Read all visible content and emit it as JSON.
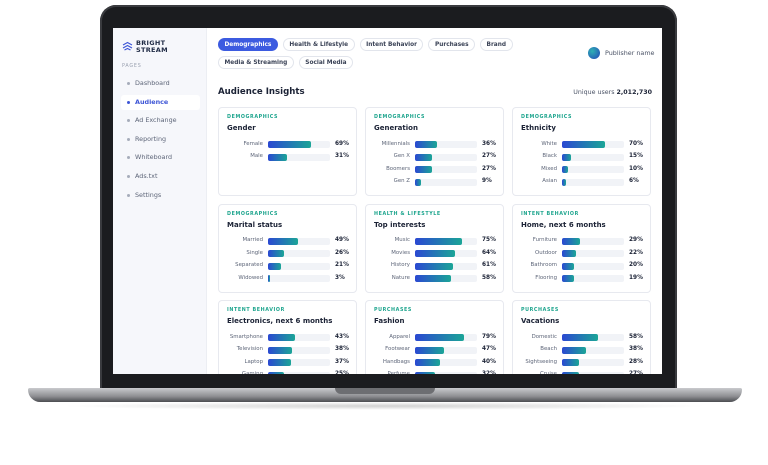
{
  "brand": {
    "line1": "BRIGHT",
    "line2": "STREAM"
  },
  "sidebar": {
    "section": "PAGES",
    "items": [
      {
        "label": "Dashboard",
        "active": false
      },
      {
        "label": "Audience",
        "active": true
      },
      {
        "label": "Ad Exchange",
        "active": false
      },
      {
        "label": "Reporting",
        "active": false
      },
      {
        "label": "Whiteboard",
        "active": false
      },
      {
        "label": "Ads.txt",
        "active": false
      },
      {
        "label": "Settings",
        "active": false
      }
    ]
  },
  "tabs": [
    {
      "label": "Demographics",
      "active": true
    },
    {
      "label": "Health & Lifestyle",
      "active": false
    },
    {
      "label": "Intent Behavior",
      "active": false
    },
    {
      "label": "Purchases",
      "active": false
    },
    {
      "label": "Brand",
      "active": false
    },
    {
      "label": "Media & Streaming",
      "active": false
    },
    {
      "label": "Social Media",
      "active": false
    }
  ],
  "user": "Publisher name",
  "header": {
    "title": "Audience Insights",
    "unique_label": "Unique users",
    "unique_value": "2,012,730"
  },
  "cards": [
    {
      "category": "DEMOGRAPHICS",
      "title": "Gender",
      "rows": [
        {
          "label": "Female",
          "value": 69,
          "value_label": "69%"
        },
        {
          "label": "Male",
          "value": 31,
          "value_label": "31%"
        }
      ]
    },
    {
      "category": "DEMOGRAPHICS",
      "title": "Generation",
      "rows": [
        {
          "label": "Millennials",
          "value": 36,
          "value_label": "36%"
        },
        {
          "label": "Gen X",
          "value": 27,
          "value_label": "27%"
        },
        {
          "label": "Boomers",
          "value": 27,
          "value_label": "27%"
        },
        {
          "label": "Gen Z",
          "value": 9,
          "value_label": "9%"
        }
      ]
    },
    {
      "category": "DEMOGRAPHICS",
      "title": "Ethnicity",
      "rows": [
        {
          "label": "White",
          "value": 70,
          "value_label": "70%"
        },
        {
          "label": "Black",
          "value": 15,
          "value_label": "15%"
        },
        {
          "label": "Mixed",
          "value": 10,
          "value_label": "10%"
        },
        {
          "label": "Asian",
          "value": 6,
          "value_label": "6%"
        }
      ]
    },
    {
      "category": "DEMOGRAPHICS",
      "title": "Marital status",
      "rows": [
        {
          "label": "Married",
          "value": 49,
          "value_label": "49%"
        },
        {
          "label": "Single",
          "value": 26,
          "value_label": "26%"
        },
        {
          "label": "Separated",
          "value": 21,
          "value_label": "21%"
        },
        {
          "label": "Widowed",
          "value": 3,
          "value_label": "3%"
        }
      ]
    },
    {
      "category": "HEALTH & LIFESTYLE",
      "title": "Top interests",
      "rows": [
        {
          "label": "Music",
          "value": 75,
          "value_label": "75%"
        },
        {
          "label": "Movies",
          "value": 64,
          "value_label": "64%"
        },
        {
          "label": "History",
          "value": 61,
          "value_label": "61%"
        },
        {
          "label": "Nature",
          "value": 58,
          "value_label": "58%"
        }
      ]
    },
    {
      "category": "INTENT BEHAVIOR",
      "title": "Home, next 6 months",
      "rows": [
        {
          "label": "Furniture",
          "value": 29,
          "value_label": "29%"
        },
        {
          "label": "Outdoor",
          "value": 22,
          "value_label": "22%"
        },
        {
          "label": "Bathroom",
          "value": 20,
          "value_label": "20%"
        },
        {
          "label": "Flooring",
          "value": 19,
          "value_label": "19%"
        }
      ]
    },
    {
      "category": "INTENT BEHAVIOR",
      "title": "Electronics, next 6 months",
      "rows": [
        {
          "label": "Smartphone",
          "value": 43,
          "value_label": "43%"
        },
        {
          "label": "Television",
          "value": 38,
          "value_label": "38%"
        },
        {
          "label": "Laptop",
          "value": 37,
          "value_label": "37%"
        },
        {
          "label": "Gaming",
          "value": 25,
          "value_label": "25%"
        }
      ]
    },
    {
      "category": "PURCHASES",
      "title": "Fashion",
      "rows": [
        {
          "label": "Apparel",
          "value": 79,
          "value_label": "79%"
        },
        {
          "label": "Footwear",
          "value": 47,
          "value_label": "47%"
        },
        {
          "label": "Handbags",
          "value": 40,
          "value_label": "40%"
        },
        {
          "label": "Perfume",
          "value": 32,
          "value_label": "32%"
        }
      ]
    },
    {
      "category": "PURCHASES",
      "title": "Vacations",
      "rows": [
        {
          "label": "Domestic",
          "value": 58,
          "value_label": "58%"
        },
        {
          "label": "Beach",
          "value": 38,
          "value_label": "38%"
        },
        {
          "label": "Sightseeing",
          "value": 28,
          "value_label": "28%"
        },
        {
          "label": "Cruise",
          "value": 27,
          "value_label": "27%"
        }
      ]
    }
  ]
}
